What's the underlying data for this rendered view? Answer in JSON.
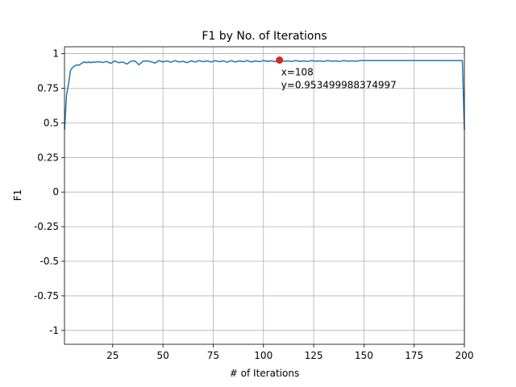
{
  "chart_data": {
    "type": "line",
    "title": "F1 by No. of Iterations",
    "xlabel": "# of Iterations",
    "ylabel": "F1",
    "xlim": [
      1,
      200
    ],
    "ylim": [
      -1.1,
      1.05
    ],
    "grid": true,
    "xticks": [
      25,
      50,
      75,
      100,
      125,
      150,
      175,
      200
    ],
    "xtick_labels": [
      "25",
      "50",
      "75",
      "100",
      "125",
      "150",
      "175",
      "200"
    ],
    "yticks": [
      1,
      0.75,
      0.5,
      0.25,
      0,
      -0.25,
      -0.5,
      -0.75,
      -1
    ],
    "ytick_labels": [
      "1",
      "0.75",
      "0.5",
      "0.25",
      "0",
      "-0.25",
      "-0.5",
      "-0.75",
      "-1"
    ],
    "series": [
      {
        "color": "#1f77b4",
        "x": [
          1,
          2,
          3,
          4,
          5,
          6,
          7,
          8,
          9,
          10,
          11,
          12,
          13,
          14,
          15,
          16,
          18,
          20,
          22,
          24,
          26,
          28,
          30,
          32,
          34,
          36,
          37,
          38,
          40,
          42,
          44,
          46,
          48,
          50,
          52,
          54,
          56,
          58,
          60,
          62,
          64,
          66,
          68,
          70,
          72,
          74,
          76,
          78,
          80,
          82,
          84,
          86,
          88,
          90,
          92,
          94,
          96,
          98,
          100,
          102,
          104,
          106,
          108,
          110,
          112,
          114,
          116,
          118,
          120,
          122,
          124,
          126,
          128,
          130,
          132,
          134,
          136,
          138,
          140,
          142,
          144,
          146,
          148,
          150,
          155,
          160,
          170,
          180,
          190,
          199,
          200
        ],
        "y": [
          0.45,
          0.7,
          0.78,
          0.88,
          0.9,
          0.91,
          0.92,
          0.915,
          0.925,
          0.935,
          0.94,
          0.935,
          0.94,
          0.935,
          0.94,
          0.938,
          0.942,
          0.936,
          0.944,
          0.93,
          0.948,
          0.935,
          0.94,
          0.925,
          0.945,
          0.948,
          0.935,
          0.92,
          0.945,
          0.948,
          0.942,
          0.932,
          0.95,
          0.94,
          0.948,
          0.938,
          0.95,
          0.94,
          0.945,
          0.935,
          0.948,
          0.94,
          0.95,
          0.942,
          0.948,
          0.94,
          0.95,
          0.942,
          0.948,
          0.938,
          0.95,
          0.94,
          0.948,
          0.942,
          0.95,
          0.94,
          0.948,
          0.942,
          0.95,
          0.945,
          0.948,
          0.942,
          0.9535,
          0.945,
          0.948,
          0.944,
          0.95,
          0.945,
          0.948,
          0.944,
          0.95,
          0.946,
          0.948,
          0.944,
          0.95,
          0.946,
          0.948,
          0.944,
          0.95,
          0.946,
          0.948,
          0.945,
          0.95,
          0.95,
          0.95,
          0.95,
          0.95,
          0.95,
          0.95,
          0.95,
          0.45
        ]
      }
    ],
    "highlight": {
      "x": 108,
      "y": 0.953499988374997,
      "color": "#d62728",
      "label_x": "x=108",
      "label_y": "y=0.953499988374997"
    }
  }
}
